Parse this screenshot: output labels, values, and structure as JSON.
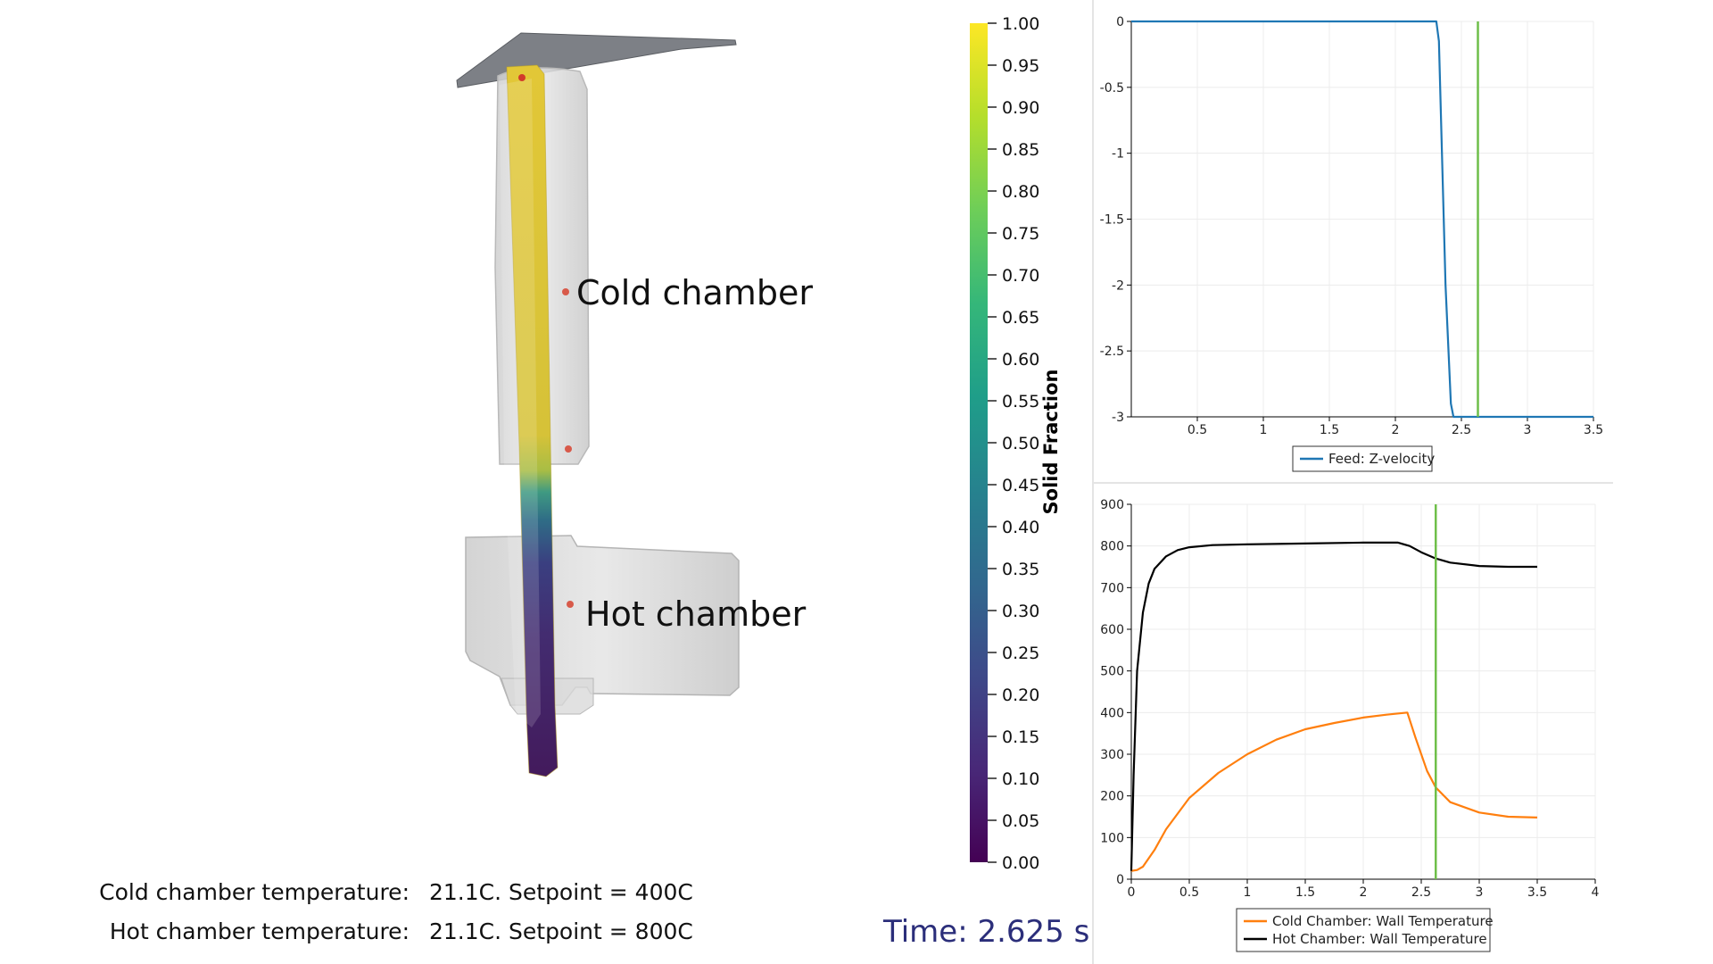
{
  "scene": {
    "cold_label": "Cold chamber",
    "hot_label": "Hot chamber"
  },
  "colorbar": {
    "title": "Solid Fraction",
    "ticks": [
      "1.00",
      "0.95",
      "0.90",
      "0.85",
      "0.80",
      "0.75",
      "0.70",
      "0.65",
      "0.60",
      "0.55",
      "0.50",
      "0.45",
      "0.40",
      "0.35",
      "0.30",
      "0.25",
      "0.20",
      "0.15",
      "0.10",
      "0.05",
      "0.00"
    ],
    "colormap": [
      "#fde725",
      "#b5de2b",
      "#6ece58",
      "#35b779",
      "#1f9e89",
      "#26828e",
      "#31688e",
      "#3e4989",
      "#482878",
      "#440154"
    ]
  },
  "info": {
    "cold_label": "Cold chamber temperature:",
    "cold_value": "21.1C. Setpoint = 400C",
    "hot_label": "Hot chamber temperature:",
    "hot_value": "21.1C. Setpoint = 800C"
  },
  "time_text": "Time: 2.625 s",
  "chart_data": [
    {
      "type": "line",
      "title": "",
      "xlabel": "",
      "ylabel": "",
      "xlim": [
        0,
        3.5
      ],
      "ylim": [
        -3,
        0
      ],
      "x_ticks": [
        "0.5",
        "1",
        "1.5",
        "2",
        "2.5",
        "3",
        "3.5"
      ],
      "y_ticks": [
        "0",
        "-0.5",
        "-1",
        "-1.5",
        "-2",
        "-2.5",
        "-3"
      ],
      "grid": true,
      "legend_position": "bottom-center",
      "marker_x": 2.625,
      "marker_color": "#6fbf4a",
      "series": [
        {
          "name": "Feed: Z-velocity",
          "color": "#1f77b4",
          "x": [
            0,
            2.31,
            2.33,
            2.35,
            2.38,
            2.42,
            2.44,
            3.5
          ],
          "y": [
            0,
            0,
            -0.15,
            -0.9,
            -2.0,
            -2.9,
            -3,
            -3
          ]
        }
      ]
    },
    {
      "type": "line",
      "title": "",
      "xlabel": "",
      "ylabel": "",
      "xlim": [
        0,
        4
      ],
      "ylim": [
        0,
        900
      ],
      "x_ticks": [
        "0",
        "0.5",
        "1",
        "1.5",
        "2",
        "2.5",
        "3",
        "3.5",
        "4"
      ],
      "y_ticks": [
        "0",
        "100",
        "200",
        "300",
        "400",
        "500",
        "600",
        "700",
        "800",
        "900"
      ],
      "grid": true,
      "legend_position": "bottom-center",
      "marker_x": 2.625,
      "marker_color": "#6fbf4a",
      "series": [
        {
          "name": "Cold Chamber: Wall Temperature",
          "color": "#ff7f0e",
          "x": [
            0,
            0.05,
            0.1,
            0.2,
            0.3,
            0.5,
            0.75,
            1.0,
            1.25,
            1.5,
            1.75,
            2.0,
            2.2,
            2.38,
            2.45,
            2.55,
            2.625,
            2.75,
            3.0,
            3.25,
            3.5
          ],
          "y": [
            20,
            22,
            30,
            70,
            120,
            195,
            255,
            300,
            335,
            360,
            375,
            388,
            395,
            400,
            340,
            260,
            220,
            185,
            160,
            150,
            148
          ]
        },
        {
          "name": "Hot Chamber: Wall Temperature",
          "color": "#000000",
          "x": [
            0,
            0.02,
            0.05,
            0.1,
            0.15,
            0.2,
            0.3,
            0.4,
            0.5,
            0.7,
            1.0,
            1.5,
            2.0,
            2.3,
            2.4,
            2.5,
            2.625,
            2.75,
            3.0,
            3.25,
            3.5
          ],
          "y": [
            20,
            250,
            500,
            640,
            710,
            745,
            775,
            790,
            797,
            802,
            804,
            806,
            808,
            808,
            800,
            785,
            770,
            760,
            752,
            750,
            750
          ]
        }
      ]
    }
  ]
}
